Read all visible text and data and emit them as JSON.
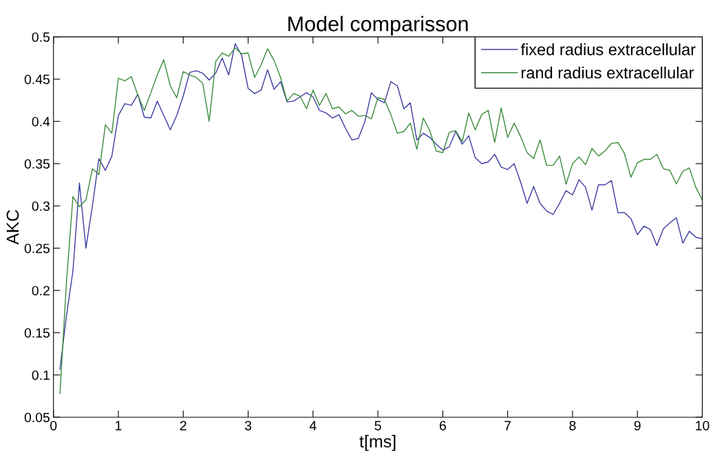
{
  "chart_data": {
    "type": "line",
    "title": "Model comparisson",
    "xlabel": "t[ms]",
    "ylabel": "AKC",
    "x": [
      0.1,
      0.2,
      0.3,
      0.4,
      0.5,
      0.6,
      0.7,
      0.8,
      0.9,
      1.0,
      1.1,
      1.2,
      1.3,
      1.4,
      1.5,
      1.6,
      1.7,
      1.8,
      1.9,
      2.0,
      2.1,
      2.2,
      2.3,
      2.4,
      2.5,
      2.6,
      2.7,
      2.8,
      2.9,
      3.0,
      3.1,
      3.2,
      3.3,
      3.4,
      3.5,
      3.6,
      3.7,
      3.8,
      3.9,
      4.0,
      4.1,
      4.2,
      4.3,
      4.4,
      4.5,
      4.6,
      4.7,
      4.8,
      4.9,
      5.0,
      5.1,
      5.2,
      5.3,
      5.4,
      5.5,
      5.6,
      5.7,
      5.8,
      5.9,
      6.0,
      6.1,
      6.2,
      6.3,
      6.4,
      6.5,
      6.6,
      6.7,
      6.8,
      6.9,
      7.0,
      7.1,
      7.2,
      7.3,
      7.4,
      7.5,
      7.6,
      7.7,
      7.8,
      7.9,
      8.0,
      8.1,
      8.2,
      8.3,
      8.4,
      8.5,
      8.6,
      8.7,
      8.8,
      8.9,
      9.0,
      9.1,
      9.2,
      9.3,
      9.4,
      9.5,
      9.6,
      9.7,
      9.8,
      9.9,
      10.0
    ],
    "series": [
      {
        "name": "fixed radius extracellular",
        "color": "#3b3ba0",
        "values": [
          0.107,
          0.17,
          0.223,
          0.327,
          0.25,
          0.3,
          0.356,
          0.342,
          0.359,
          0.407,
          0.421,
          0.419,
          0.432,
          0.405,
          0.404,
          0.424,
          0.407,
          0.39,
          0.407,
          0.43,
          0.458,
          0.46,
          0.457,
          0.449,
          0.457,
          0.475,
          0.455,
          0.492,
          0.478,
          0.439,
          0.433,
          0.437,
          0.461,
          0.438,
          0.447,
          0.423,
          0.424,
          0.429,
          0.434,
          0.429,
          0.413,
          0.41,
          0.404,
          0.408,
          0.392,
          0.378,
          0.38,
          0.4,
          0.434,
          0.426,
          0.422,
          0.447,
          0.442,
          0.415,
          0.422,
          0.378,
          0.386,
          0.381,
          0.373,
          0.366,
          0.37,
          0.388,
          0.373,
          0.383,
          0.357,
          0.35,
          0.352,
          0.361,
          0.346,
          0.343,
          0.35,
          0.328,
          0.303,
          0.323,
          0.303,
          0.294,
          0.29,
          0.303,
          0.318,
          0.313,
          0.331,
          0.322,
          0.295,
          0.325,
          0.325,
          0.33,
          0.292,
          0.292,
          0.285,
          0.266,
          0.276,
          0.272,
          0.253,
          0.273,
          0.28,
          0.286,
          0.256,
          0.27,
          0.263,
          0.261
        ]
      },
      {
        "name": "rand radius extracellular",
        "color": "#3a8a3a",
        "values": [
          0.078,
          0.21,
          0.311,
          0.299,
          0.307,
          0.344,
          0.337,
          0.396,
          0.386,
          0.451,
          0.448,
          0.453,
          0.431,
          0.413,
          0.434,
          0.455,
          0.473,
          0.442,
          0.428,
          0.459,
          0.455,
          0.452,
          0.445,
          0.4,
          0.471,
          0.481,
          0.477,
          0.487,
          0.48,
          0.481,
          0.452,
          0.467,
          0.486,
          0.472,
          0.452,
          0.424,
          0.433,
          0.43,
          0.415,
          0.437,
          0.419,
          0.433,
          0.415,
          0.417,
          0.409,
          0.413,
          0.406,
          0.407,
          0.403,
          0.428,
          0.426,
          0.408,
          0.386,
          0.388,
          0.398,
          0.367,
          0.404,
          0.389,
          0.365,
          0.363,
          0.387,
          0.389,
          0.376,
          0.41,
          0.39,
          0.408,
          0.413,
          0.375,
          0.416,
          0.381,
          0.398,
          0.382,
          0.363,
          0.356,
          0.378,
          0.348,
          0.348,
          0.359,
          0.326,
          0.35,
          0.358,
          0.349,
          0.368,
          0.359,
          0.365,
          0.374,
          0.375,
          0.362,
          0.334,
          0.351,
          0.355,
          0.355,
          0.361,
          0.344,
          0.342,
          0.326,
          0.341,
          0.345,
          0.322,
          0.307
        ]
      }
    ],
    "xlim": [
      0,
      10
    ],
    "xticks": [
      0,
      1,
      2,
      3,
      4,
      5,
      6,
      7,
      8,
      9,
      10
    ],
    "ylim": [
      0.05,
      0.5
    ],
    "yticks": [
      0.05,
      0.1,
      0.15,
      0.2,
      0.25,
      0.3,
      0.35,
      0.4,
      0.45,
      0.5
    ],
    "grid": false,
    "legend": "top right",
    "marker": "none",
    "line_style": "solid"
  }
}
